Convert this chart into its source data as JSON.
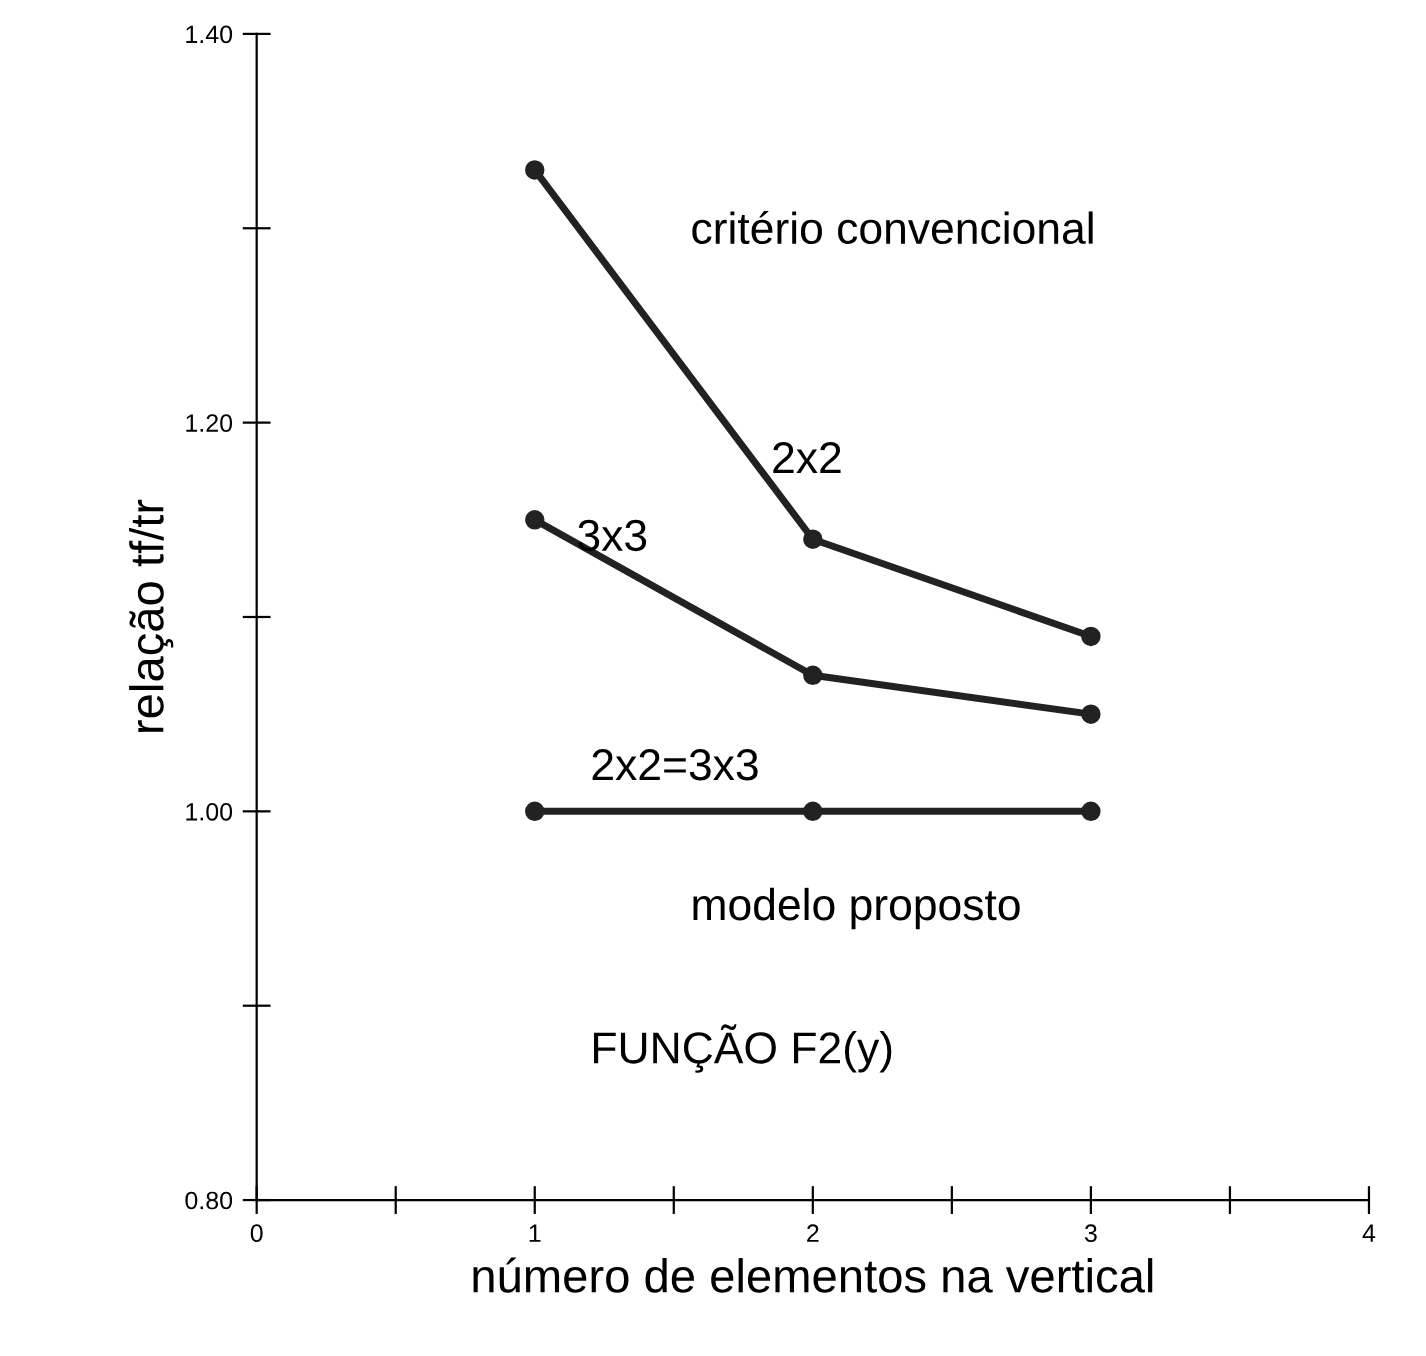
{
  "chart_data": {
    "type": "line",
    "xlabel": "número de elementos na vertical",
    "ylabel": "relação tf/tr",
    "x": [
      1,
      2,
      3
    ],
    "series": [
      {
        "color": "#222222",
        "values": [
          1.33,
          1.14,
          1.09
        ]
      },
      {
        "color": "#222222",
        "values": [
          1.15,
          1.07,
          1.05
        ]
      },
      {
        "color": "#222222",
        "values": [
          1.0,
          1.0,
          1.0
        ]
      }
    ],
    "marker": "circle",
    "line_style": "solid",
    "grid": false,
    "legend": false,
    "xlim": [
      0,
      4
    ],
    "xticks": [
      0,
      {
        "value": 0.5,
        "label": null
      },
      1,
      {
        "value": 1.5,
        "label": null
      },
      2,
      {
        "value": 2.5,
        "label": null
      },
      3,
      {
        "value": 3.5,
        "label": null
      },
      4
    ],
    "ylim": [
      0.8,
      1.4
    ],
    "yticks": [
      {
        "value": 0.8,
        "label": "0.80"
      },
      {
        "value": 0.9,
        "label": null
      },
      {
        "value": 1.0,
        "label": "1.00"
      },
      {
        "value": 1.1,
        "label": null
      },
      {
        "value": 1.2,
        "label": "1.20"
      },
      {
        "value": 1.3,
        "label": null
      },
      {
        "value": 1.4,
        "label": "1.40"
      }
    ],
    "annotations": [
      "critério convencional",
      {
        "text": "2x2",
        "x": 1.85,
        "y": 1.18
      },
      {
        "text": "3x3",
        "x": 1.15,
        "y": 1.14
      },
      "2x2=3x3",
      "modelo proposto",
      "FUNÇÃO F2(y)"
    ]
  }
}
